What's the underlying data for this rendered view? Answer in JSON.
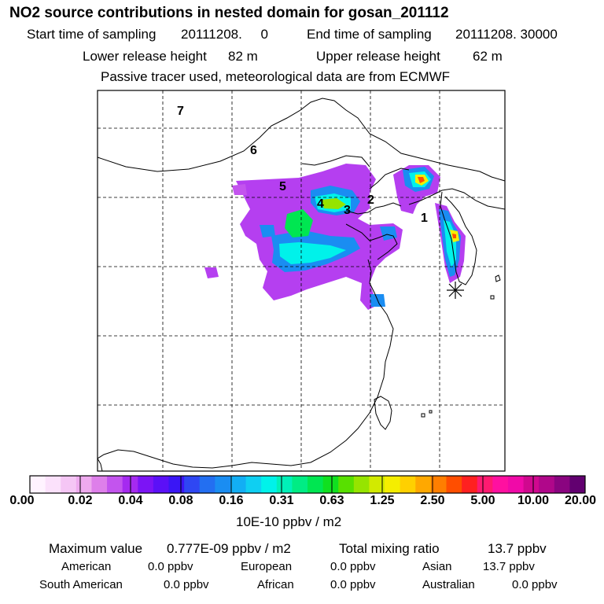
{
  "header": {
    "title": "NO2 source contributions in nested domain for gosan_201112",
    "start_label": "Start time of sampling",
    "start_value": "20111208.     0",
    "end_label": "End time of sampling",
    "end_value": "20111208. 30000",
    "lower_label": "Lower release height",
    "lower_value": "82 m",
    "upper_label": "Upper release height",
    "upper_value": "62 m",
    "note": "Passive tracer used, meteorological data are from ECMWF"
  },
  "map": {
    "region_labels": [
      "1",
      "2",
      "3",
      "4",
      "5",
      "6",
      "7"
    ],
    "receptor_marker": "asterisk-icon"
  },
  "colorbar": {
    "tick_labels": [
      "0.00",
      "0.02",
      "0.04",
      "0.08",
      "0.16",
      "0.31",
      "0.63",
      "1.25",
      "2.50",
      "5.00",
      "10.00",
      "20.00"
    ],
    "colors": [
      "#fff3ff",
      "#fbe1fb",
      "#f5c6f5",
      "#eeaaee",
      "#de7fea",
      "#c354ee",
      "#a52af0",
      "#7c14f5",
      "#5b10f7",
      "#3a16f6",
      "#2f47f3",
      "#236ff1",
      "#1a8df2",
      "#12aef4",
      "#0fcff2",
      "#00f2ea",
      "#00f0b8",
      "#00ec84",
      "#00e651",
      "#10e020",
      "#58e000",
      "#96e400",
      "#d2ea00",
      "#f5ee00",
      "#ffd000",
      "#ffa800",
      "#ff7e00",
      "#ff4e00",
      "#ff2020",
      "#ff1a70",
      "#ff10a0",
      "#f00aa8",
      "#d0088f",
      "#b0078a",
      "#8a0480",
      "#620070"
    ],
    "unit": "10E-10 ppbv / m2"
  },
  "stats": {
    "max_label": "Maximum value",
    "max_value": "0.777E-09 ppbv / m2",
    "total_label": "Total mixing ratio",
    "total_value": "13.7 ppbv",
    "regions": [
      {
        "name": "American",
        "value": "0.0 ppbv"
      },
      {
        "name": "European",
        "value": "0.0 ppbv"
      },
      {
        "name": "Asian",
        "value": "13.7 ppbv"
      },
      {
        "name": "South American",
        "value": "0.0 ppbv"
      },
      {
        "name": "African",
        "value": "0.0 ppbv"
      },
      {
        "name": "Australian",
        "value": "0.0 ppbv"
      }
    ]
  }
}
